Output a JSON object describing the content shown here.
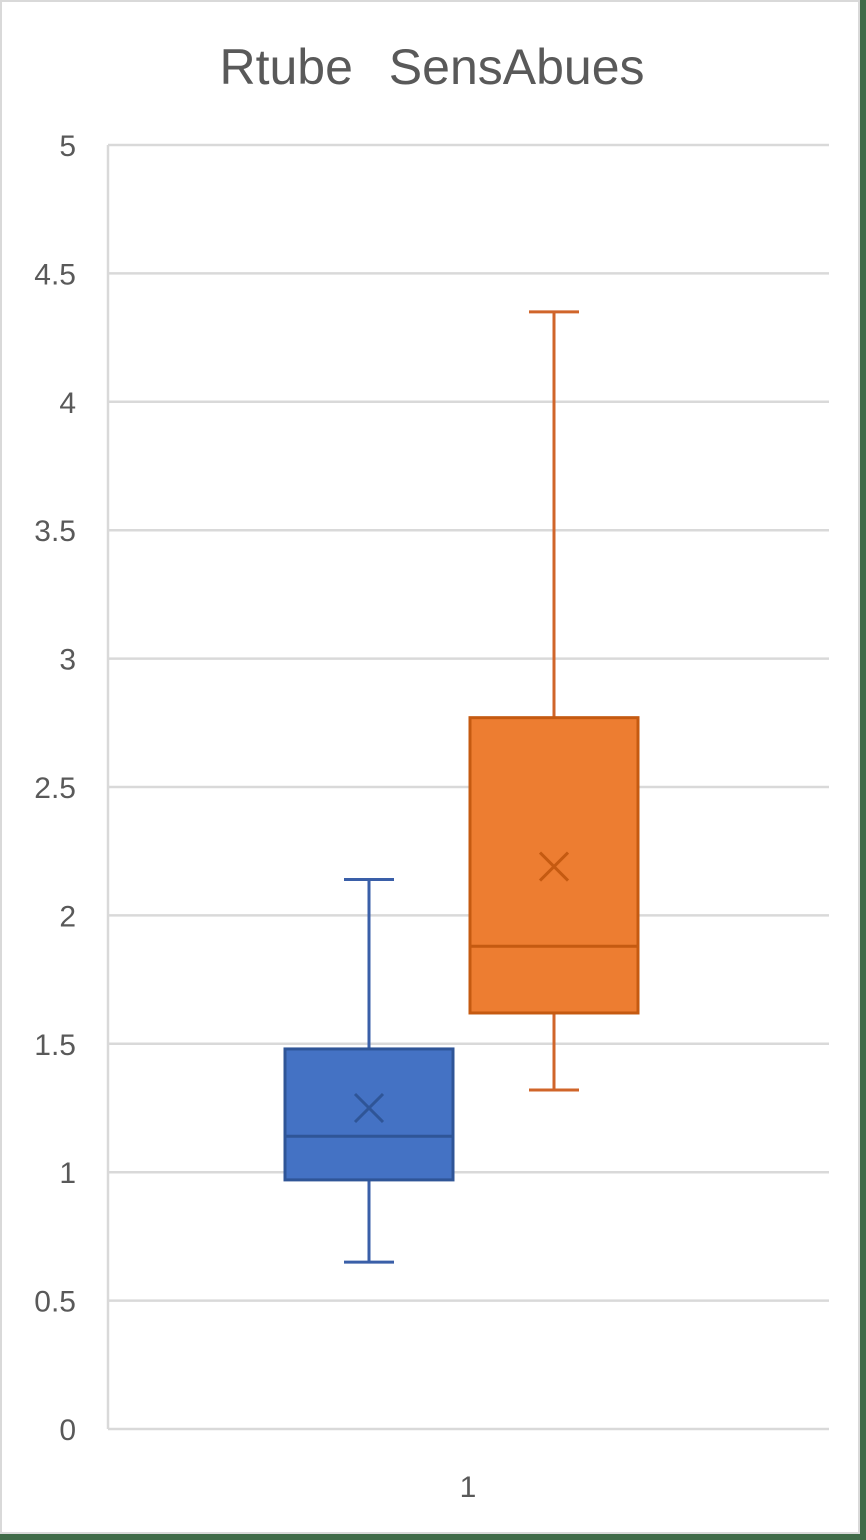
{
  "chart_data": {
    "type": "boxplot",
    "title": "Rtube   SensAbues",
    "xlabel": "",
    "ylabel": "",
    "categories": [
      "1"
    ],
    "ylim": [
      0,
      5
    ],
    "yticks": [
      "0",
      "0.5",
      "1",
      "1.5",
      "2",
      "2.5",
      "3",
      "3.5",
      "4",
      "4.5",
      "5"
    ],
    "grid": true,
    "legend": null,
    "series": [
      {
        "name": "Rtube",
        "color": "#4472c4",
        "min": 0.65,
        "q1": 0.97,
        "median": 1.14,
        "mean": 1.25,
        "q3": 1.48,
        "max": 2.14
      },
      {
        "name": "SensAbues",
        "color": "#ed7d31",
        "min": 1.32,
        "q1": 1.62,
        "median": 1.88,
        "mean": 2.19,
        "q3": 2.77,
        "max": 4.35
      }
    ]
  }
}
